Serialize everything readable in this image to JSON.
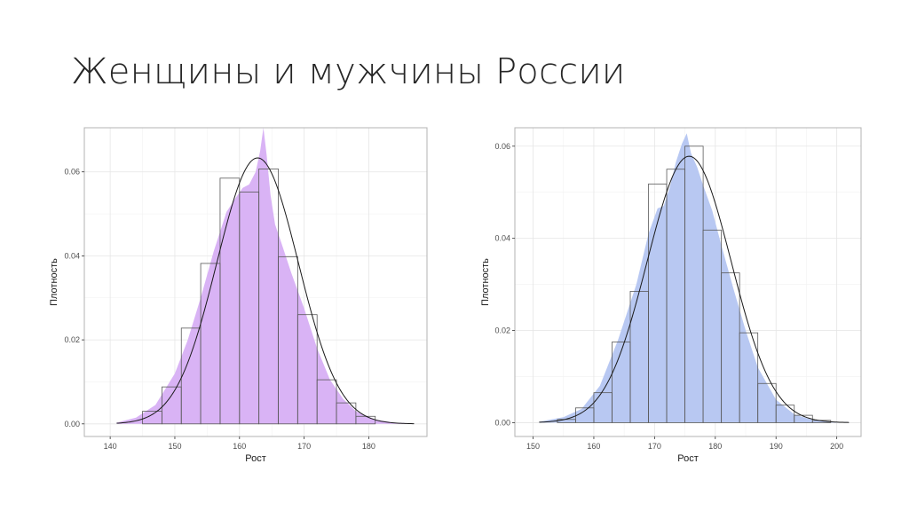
{
  "slide": {
    "title": "Женщины и мужчины России"
  },
  "chart_data": [
    {
      "type": "histogram",
      "xlabel": "Рост",
      "ylabel": "Плотность",
      "xlim": [
        136,
        189
      ],
      "ylim": [
        -0.003,
        0.0705
      ],
      "xticks": [
        140,
        150,
        160,
        170,
        180
      ],
      "yticks": [
        0.0,
        0.02,
        0.04,
        0.06
      ],
      "ytick_labels": [
        "0.00",
        "0.02",
        "0.04",
        "0.06"
      ],
      "grid": true,
      "bin_width": 3,
      "bins": [
        {
          "x0": 145,
          "value": 0.003
        },
        {
          "x0": 148,
          "value": 0.0088
        },
        {
          "x0": 151,
          "value": 0.0228
        },
        {
          "x0": 154,
          "value": 0.0382
        },
        {
          "x0": 157,
          "value": 0.0585
        },
        {
          "x0": 160,
          "value": 0.0552
        },
        {
          "x0": 163,
          "value": 0.0607
        },
        {
          "x0": 166,
          "value": 0.0398
        },
        {
          "x0": 169,
          "value": 0.026
        },
        {
          "x0": 172,
          "value": 0.0105
        },
        {
          "x0": 175,
          "value": 0.005
        },
        {
          "x0": 178,
          "value": 0.0018
        }
      ],
      "density": {
        "x": [
          141,
          144,
          147,
          150,
          152,
          154,
          156,
          158,
          159.5,
          160.5,
          161.5,
          162.5,
          163.2,
          163.7,
          164.2,
          164.8,
          165.5,
          166.5,
          168,
          170,
          172,
          174,
          176,
          178,
          181,
          184,
          187
        ],
        "y": [
          0.0003,
          0.0015,
          0.0045,
          0.012,
          0.02,
          0.03,
          0.041,
          0.0505,
          0.054,
          0.0562,
          0.057,
          0.06,
          0.065,
          0.0705,
          0.064,
          0.0545,
          0.0475,
          0.043,
          0.036,
          0.0275,
          0.018,
          0.0105,
          0.006,
          0.003,
          0.001,
          0.0003,
          0.0001
        ]
      },
      "normal_fit": {
        "mean": 162.8,
        "sd": 6.3
      },
      "fill_color": "#d9b3f5"
    },
    {
      "type": "histogram",
      "xlabel": "Рост",
      "ylabel": "Плотность",
      "xlim": [
        147,
        204
      ],
      "ylim": [
        -0.003,
        0.064
      ],
      "xticks": [
        150,
        160,
        170,
        180,
        190,
        200
      ],
      "yticks": [
        0.0,
        0.02,
        0.04,
        0.06
      ],
      "ytick_labels": [
        "0.00",
        "0.02",
        "0.04",
        "0.06"
      ],
      "grid": true,
      "bin_width": 3,
      "bins": [
        {
          "x0": 154,
          "value": 0.0007
        },
        {
          "x0": 157,
          "value": 0.0032
        },
        {
          "x0": 160,
          "value": 0.0065
        },
        {
          "x0": 163,
          "value": 0.0175
        },
        {
          "x0": 166,
          "value": 0.0285
        },
        {
          "x0": 169,
          "value": 0.0518
        },
        {
          "x0": 172,
          "value": 0.055
        },
        {
          "x0": 175,
          "value": 0.06
        },
        {
          "x0": 178,
          "value": 0.0418
        },
        {
          "x0": 181,
          "value": 0.0325
        },
        {
          "x0": 184,
          "value": 0.0195
        },
        {
          "x0": 187,
          "value": 0.0085
        },
        {
          "x0": 190,
          "value": 0.0038
        },
        {
          "x0": 193,
          "value": 0.0016
        },
        {
          "x0": 196,
          "value": 0.0005
        }
      ],
      "density": {
        "x": [
          151,
          155,
          158,
          161,
          164,
          167,
          169,
          170.5,
          171.5,
          172.5,
          173.5,
          174.5,
          175.3,
          176,
          177,
          178,
          179.5,
          181,
          183,
          185,
          187,
          190,
          193,
          196,
          199,
          202
        ],
        "y": [
          0.0002,
          0.0012,
          0.003,
          0.008,
          0.018,
          0.03,
          0.041,
          0.0465,
          0.047,
          0.051,
          0.0565,
          0.0605,
          0.0628,
          0.0585,
          0.0555,
          0.0515,
          0.046,
          0.0385,
          0.029,
          0.02,
          0.012,
          0.005,
          0.0018,
          0.0006,
          0.0002,
          0.0001
        ]
      },
      "normal_fit": {
        "mean": 175.7,
        "sd": 6.9
      },
      "fill_color": "#b8c8f2"
    }
  ]
}
